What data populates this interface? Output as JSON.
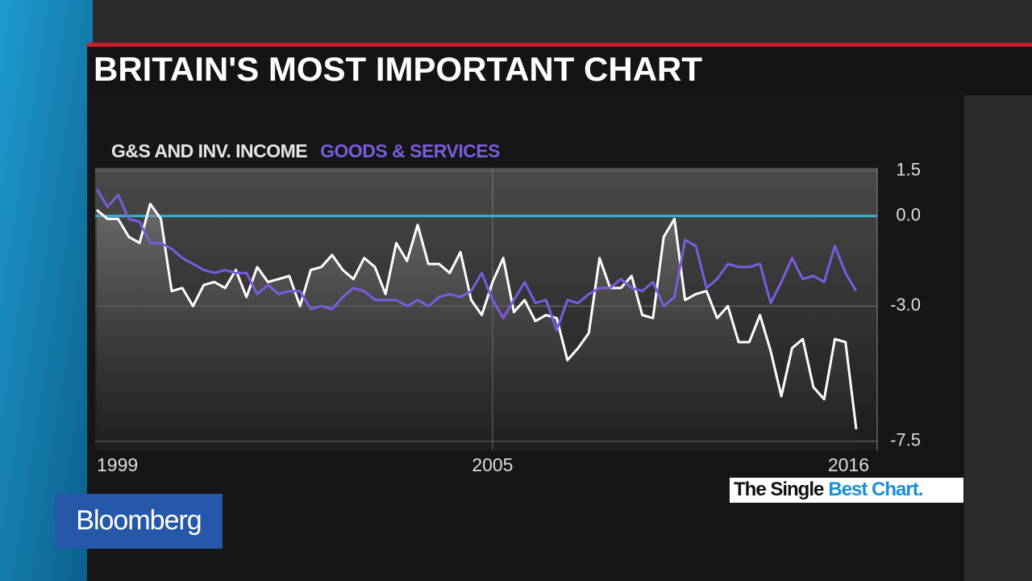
{
  "branding": {
    "network": "Bloomberg",
    "tag_start": "The Single",
    "tag_end": "Best Chart."
  },
  "chart_data": {
    "type": "line",
    "title": "BRITAIN'S MOST IMPORTANT CHART",
    "categories": [
      "1999",
      null,
      null,
      null,
      null,
      null,
      null,
      null,
      null,
      null,
      null,
      null,
      null,
      null,
      null,
      null,
      null,
      null,
      null,
      null,
      null,
      null,
      null,
      null,
      null,
      null,
      null,
      null,
      null,
      null,
      null,
      null,
      null,
      null,
      null,
      null,
      null,
      "2005",
      null,
      null,
      null,
      null,
      null,
      null,
      null,
      null,
      null,
      null,
      null,
      null,
      null,
      null,
      null,
      null,
      null,
      null,
      null,
      null,
      null,
      null,
      null,
      null,
      null,
      null,
      null,
      null,
      null,
      null,
      null,
      null,
      null,
      "2016"
    ],
    "series": [
      {
        "name": "G&S AND INV. INCOME",
        "color": "#ffffff",
        "values": [
          0.2,
          -0.1,
          -0.1,
          -0.7,
          -0.9,
          0.4,
          -0.1,
          -2.5,
          -2.4,
          -3.0,
          -2.3,
          -2.2,
          -2.4,
          -1.8,
          -2.7,
          -1.7,
          -2.2,
          -2.1,
          -2.0,
          -3.0,
          -1.8,
          -1.7,
          -1.3,
          -1.8,
          -2.1,
          -1.4,
          -1.7,
          -2.6,
          -0.9,
          -1.5,
          -0.3,
          -1.6,
          -1.6,
          -1.9,
          -1.2,
          -2.8,
          -3.3,
          -2.2,
          -1.4,
          -3.2,
          -2.8,
          -3.5,
          -3.3,
          -3.4,
          -4.8,
          -4.4,
          -3.9,
          -1.4,
          -2.4,
          -2.4,
          -2.0,
          -3.3,
          -3.4,
          -0.7,
          -0.1,
          -2.8,
          -2.6,
          -2.5,
          -3.4,
          -3.0,
          -4.2,
          -4.2,
          -3.3,
          -4.5,
          -6.0,
          -4.4,
          -4.1,
          -5.7,
          -6.1,
          -4.1,
          -4.2,
          -7.1
        ]
      },
      {
        "name": "GOODS & SERVICES",
        "color": "#7b5ce0",
        "values": [
          0.9,
          0.3,
          0.7,
          -0.1,
          -0.2,
          -0.9,
          -0.9,
          -1.1,
          -1.4,
          -1.6,
          -1.8,
          -1.9,
          -1.8,
          -1.9,
          -1.9,
          -2.6,
          -2.3,
          -2.6,
          -2.5,
          -2.5,
          -3.1,
          -3.0,
          -3.1,
          -2.7,
          -2.4,
          -2.5,
          -2.8,
          -2.8,
          -2.8,
          -3.0,
          -2.8,
          -3.0,
          -2.7,
          -2.6,
          -2.7,
          -2.5,
          -1.9,
          -2.8,
          -3.4,
          -2.8,
          -2.2,
          -2.9,
          -2.8,
          -3.8,
          -2.8,
          -2.9,
          -2.6,
          -2.4,
          -2.4,
          -2.1,
          -2.4,
          -2.5,
          -2.2,
          -3.0,
          -2.7,
          -0.8,
          -1.0,
          -2.4,
          -2.1,
          -1.6,
          -1.7,
          -1.7,
          -1.6,
          -2.9,
          -2.2,
          -1.4,
          -2.1,
          -2.0,
          -2.2,
          -1.0,
          -1.9,
          -2.5
        ]
      }
    ],
    "ylim": [
      -7.8,
      1.6
    ],
    "yticks": [
      1.5,
      {
        "value": 0,
        "label": "0.0"
      },
      {
        "value": -3,
        "label": "-3.0"
      },
      -7.5
    ],
    "y_axis_side": "right",
    "grid": true,
    "reference_line": {
      "value": 0,
      "color": "#2fb4dc"
    }
  }
}
